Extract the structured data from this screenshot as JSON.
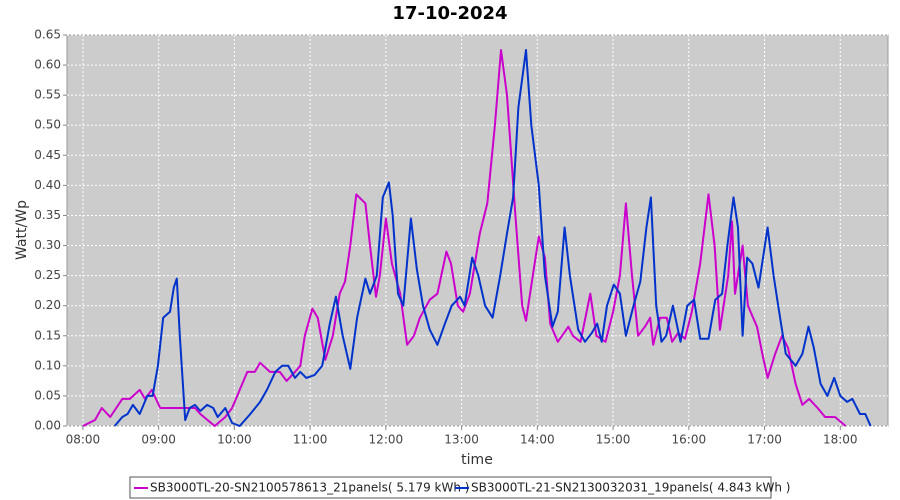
{
  "chart_data": {
    "type": "line",
    "title": "17-10-2024",
    "x_label": "time",
    "y_label": "Watt/Wp",
    "xlim": [
      7.79,
      18.63
    ],
    "ylim": [
      0,
      0.65
    ],
    "xticks": [
      {
        "value": 8,
        "label": "08:00"
      },
      {
        "value": 9,
        "label": "09:00"
      },
      {
        "value": 10,
        "label": "10:00"
      },
      {
        "value": 11,
        "label": "11:00"
      },
      {
        "value": 12,
        "label": "12:00"
      },
      {
        "value": 13,
        "label": "13:00"
      },
      {
        "value": 14,
        "label": "14:00"
      },
      {
        "value": 15,
        "label": "15:00"
      },
      {
        "value": 16,
        "label": "16:00"
      },
      {
        "value": 17,
        "label": "17:00"
      },
      {
        "value": 18,
        "label": "18:00"
      }
    ],
    "yticks": [
      {
        "value": 0,
        "label": "0.00"
      },
      0.05,
      {
        "value": 0.1,
        "label": "0.10"
      },
      0.15,
      {
        "value": 0.2,
        "label": "0.20"
      },
      0.25,
      {
        "value": 0.3,
        "label": "0.30"
      },
      0.35,
      {
        "value": 0.4,
        "label": "0.40"
      },
      0.45,
      {
        "value": 0.5,
        "label": "0.50"
      },
      0.55,
      {
        "value": 0.6,
        "label": "0.60"
      },
      0.65
    ],
    "grid": true,
    "series": [
      {
        "name": "SB3000TL-20-SN2100578613_21panels( 5.179 kWh )",
        "color": "#cc00cc",
        "x": [
          8.0,
          8.16,
          8.25,
          8.36,
          8.52,
          8.62,
          8.75,
          8.82,
          8.91,
          9.02,
          9.28,
          9.48,
          9.55,
          9.74,
          9.88,
          9.97,
          10.17,
          10.27,
          10.34,
          10.47,
          10.6,
          10.69,
          10.8,
          10.87,
          10.93,
          11.03,
          11.1,
          11.2,
          11.3,
          11.39,
          11.46,
          11.53,
          11.61,
          11.73,
          11.79,
          11.87,
          11.92,
          12.0,
          12.08,
          12.19,
          12.28,
          12.37,
          12.45,
          12.58,
          12.68,
          12.8,
          12.86,
          12.95,
          13.02,
          13.11,
          13.24,
          13.34,
          13.44,
          13.52,
          13.6,
          13.71,
          13.8,
          13.85,
          13.94,
          14.02,
          14.1,
          14.17,
          14.27,
          14.41,
          14.47,
          14.57,
          14.7,
          14.78,
          14.9,
          15.0,
          15.09,
          15.17,
          15.25,
          15.33,
          15.42,
          15.49,
          15.53,
          15.62,
          15.71,
          15.78,
          15.86,
          15.95,
          16.04,
          16.15,
          16.26,
          16.34,
          16.41,
          16.52,
          16.57,
          16.61,
          16.71,
          16.78,
          16.9,
          16.97,
          17.04,
          17.14,
          17.23,
          17.31,
          17.41,
          17.5,
          17.59,
          17.7,
          17.8,
          17.93,
          18.07
        ],
        "values": [
          0,
          0.01,
          0.03,
          0.015,
          0.045,
          0.045,
          0.06,
          0.045,
          0.06,
          0.03,
          0.03,
          0.03,
          0.02,
          0,
          0.015,
          0.03,
          0.09,
          0.09,
          0.105,
          0.09,
          0.09,
          0.075,
          0.09,
          0.1,
          0.15,
          0.195,
          0.18,
          0.11,
          0.15,
          0.22,
          0.24,
          0.3,
          0.385,
          0.37,
          0.3,
          0.215,
          0.25,
          0.345,
          0.27,
          0.22,
          0.135,
          0.15,
          0.18,
          0.21,
          0.22,
          0.29,
          0.27,
          0.2,
          0.19,
          0.22,
          0.32,
          0.37,
          0.5,
          0.625,
          0.55,
          0.35,
          0.2,
          0.175,
          0.25,
          0.315,
          0.28,
          0.17,
          0.14,
          0.165,
          0.15,
          0.14,
          0.22,
          0.15,
          0.14,
          0.19,
          0.25,
          0.37,
          0.25,
          0.15,
          0.165,
          0.18,
          0.135,
          0.18,
          0.18,
          0.14,
          0.155,
          0.145,
          0.19,
          0.27,
          0.385,
          0.3,
          0.16,
          0.25,
          0.34,
          0.22,
          0.3,
          0.2,
          0.165,
          0.12,
          0.08,
          0.12,
          0.15,
          0.13,
          0.07,
          0.035,
          0.045,
          0.03,
          0.015,
          0.015,
          0
        ]
      },
      {
        "name": "SB3000TL-21-SN2130032031_19panels( 4.843 kWh )",
        "color": "#0033cc",
        "x": [
          8.42,
          8.52,
          8.59,
          8.66,
          8.75,
          8.85,
          8.92,
          8.99,
          9.06,
          9.15,
          9.2,
          9.24,
          9.28,
          9.35,
          9.41,
          9.48,
          9.55,
          9.64,
          9.72,
          9.78,
          9.88,
          9.97,
          10.07,
          10.21,
          10.34,
          10.43,
          10.54,
          10.63,
          10.71,
          10.8,
          10.87,
          10.95,
          11.06,
          11.16,
          11.26,
          11.34,
          11.43,
          11.53,
          11.62,
          11.73,
          11.79,
          11.88,
          11.96,
          12.04,
          12.09,
          12.16,
          12.23,
          12.33,
          12.41,
          12.49,
          12.58,
          12.68,
          12.78,
          12.87,
          12.98,
          13.04,
          13.14,
          13.22,
          13.31,
          13.41,
          13.51,
          13.6,
          13.68,
          13.75,
          13.85,
          13.92,
          14.02,
          14.1,
          14.2,
          14.27,
          14.36,
          14.43,
          14.54,
          14.63,
          14.72,
          14.79,
          14.85,
          14.92,
          15.01,
          15.09,
          15.17,
          15.27,
          15.36,
          15.44,
          15.5,
          15.57,
          15.64,
          15.7,
          15.79,
          15.89,
          15.98,
          16.07,
          16.15,
          16.26,
          16.35,
          16.44,
          16.51,
          16.59,
          16.65,
          16.71,
          16.77,
          16.84,
          16.92,
          17.04,
          17.12,
          17.18,
          17.28,
          17.41,
          17.5,
          17.58,
          17.65,
          17.74,
          17.83,
          17.92,
          18.0,
          18.09,
          18.16,
          18.26,
          18.33,
          18.4
        ],
        "values": [
          0,
          0.015,
          0.02,
          0.035,
          0.02,
          0.05,
          0.05,
          0.1,
          0.18,
          0.19,
          0.23,
          0.245,
          0.15,
          0.01,
          0.03,
          0.035,
          0.025,
          0.035,
          0.03,
          0.015,
          0.03,
          0.005,
          0,
          0.02,
          0.04,
          0.06,
          0.09,
          0.1,
          0.1,
          0.08,
          0.09,
          0.08,
          0.085,
          0.1,
          0.17,
          0.215,
          0.15,
          0.095,
          0.18,
          0.245,
          0.22,
          0.25,
          0.38,
          0.405,
          0.35,
          0.22,
          0.2,
          0.345,
          0.26,
          0.2,
          0.16,
          0.135,
          0.17,
          0.2,
          0.215,
          0.2,
          0.28,
          0.25,
          0.2,
          0.18,
          0.25,
          0.32,
          0.38,
          0.53,
          0.625,
          0.5,
          0.4,
          0.25,
          0.165,
          0.19,
          0.33,
          0.25,
          0.16,
          0.14,
          0.155,
          0.17,
          0.14,
          0.2,
          0.235,
          0.22,
          0.15,
          0.2,
          0.24,
          0.33,
          0.38,
          0.2,
          0.14,
          0.15,
          0.2,
          0.14,
          0.2,
          0.21,
          0.145,
          0.145,
          0.21,
          0.22,
          0.3,
          0.38,
          0.33,
          0.15,
          0.28,
          0.27,
          0.23,
          0.33,
          0.25,
          0.2,
          0.12,
          0.1,
          0.12,
          0.165,
          0.13,
          0.07,
          0.05,
          0.08,
          0.05,
          0.04,
          0.045,
          0.02,
          0.02,
          0
        ]
      }
    ]
  }
}
